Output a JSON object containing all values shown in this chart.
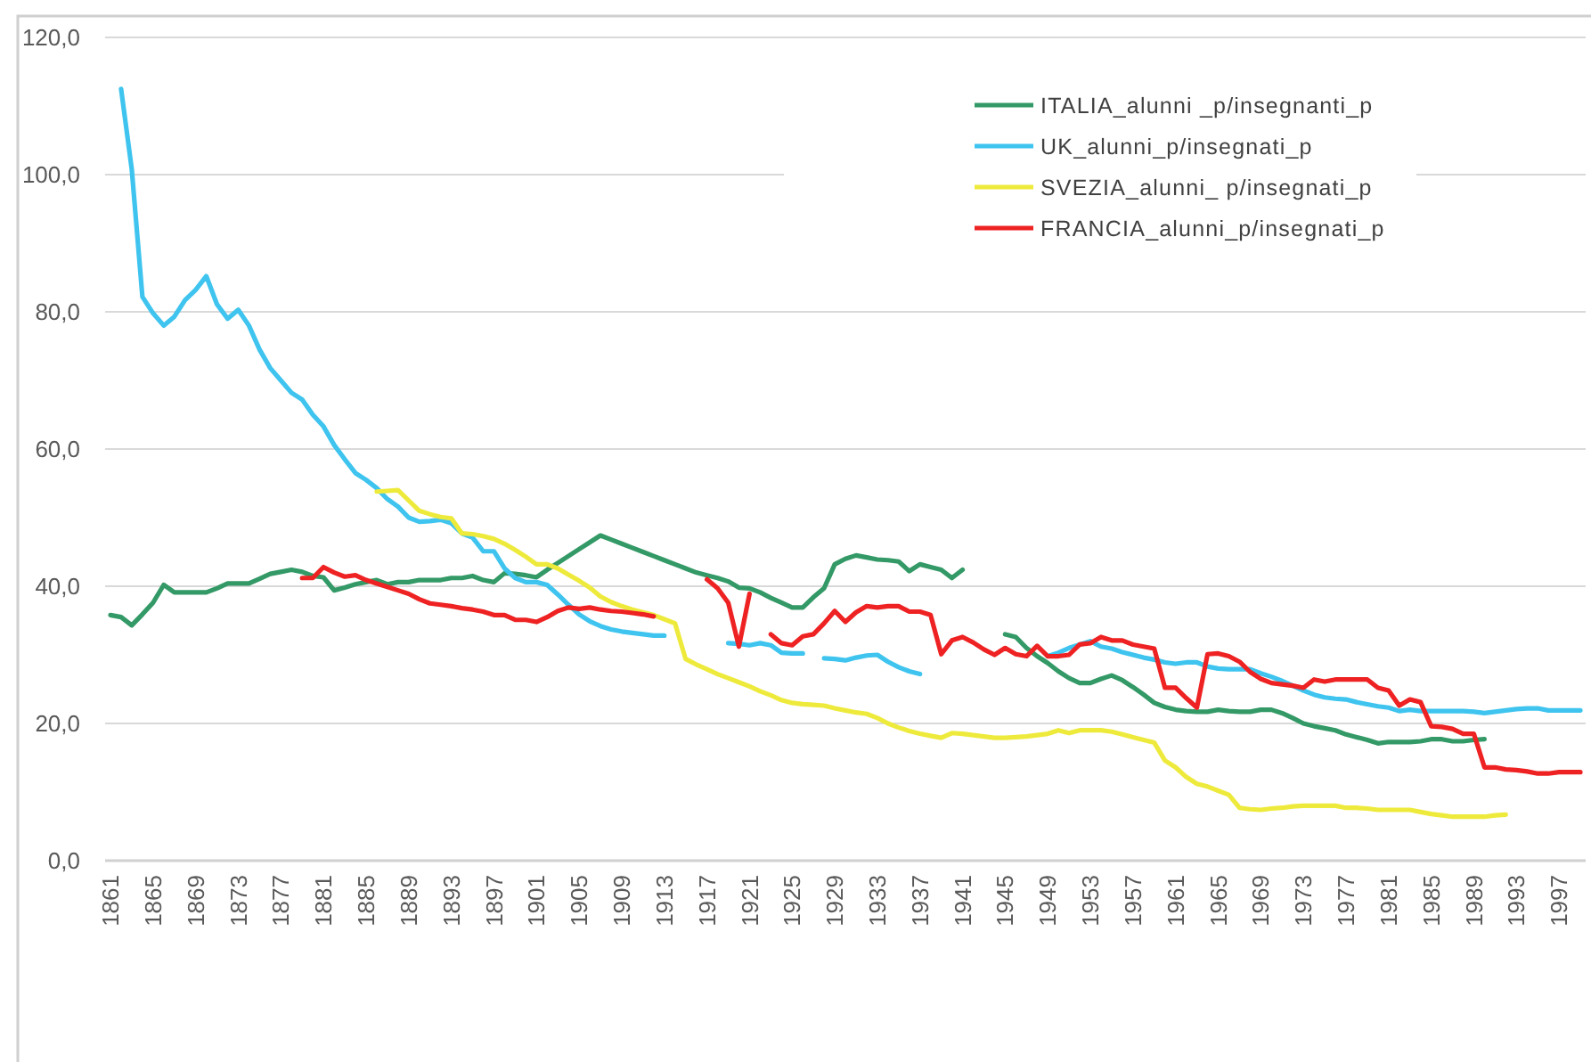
{
  "chart_data": {
    "type": "line",
    "x": [
      1861,
      1862,
      1863,
      1864,
      1865,
      1866,
      1867,
      1868,
      1869,
      1870,
      1871,
      1872,
      1873,
      1874,
      1875,
      1876,
      1877,
      1878,
      1879,
      1880,
      1881,
      1882,
      1883,
      1884,
      1885,
      1886,
      1887,
      1888,
      1889,
      1890,
      1891,
      1892,
      1893,
      1894,
      1895,
      1896,
      1897,
      1898,
      1899,
      1900,
      1901,
      1902,
      1903,
      1904,
      1905,
      1906,
      1907,
      1908,
      1909,
      1910,
      1911,
      1912,
      1913,
      1914,
      1915,
      1916,
      1917,
      1918,
      1919,
      1920,
      1921,
      1922,
      1923,
      1924,
      1925,
      1926,
      1927,
      1928,
      1929,
      1930,
      1931,
      1932,
      1933,
      1934,
      1935,
      1936,
      1937,
      1938,
      1939,
      1940,
      1941,
      1942,
      1943,
      1944,
      1945,
      1946,
      1947,
      1948,
      1949,
      1950,
      1951,
      1952,
      1953,
      1954,
      1955,
      1956,
      1957,
      1958,
      1959,
      1960,
      1961,
      1962,
      1963,
      1964,
      1965,
      1966,
      1967,
      1968,
      1969,
      1970,
      1971,
      1972,
      1973,
      1974,
      1975,
      1976,
      1977,
      1978,
      1979,
      1980,
      1981,
      1982,
      1983,
      1984,
      1985,
      1986,
      1987,
      1988,
      1989,
      1990,
      1991,
      1992,
      1993,
      1994,
      1995,
      1996,
      1997,
      1998,
      1999
    ],
    "series": [
      {
        "name": "ITALIA_alunni _p/insegnanti_p",
        "color": "#339966",
        "values": [
          35.8,
          35.5,
          34.3,
          35.9,
          37.6,
          40.2,
          39.1,
          39.1,
          39.1,
          39.1,
          39.7,
          40.4,
          40.4,
          40.4,
          41.1,
          41.8,
          42.1,
          42.4,
          42.1,
          41.5,
          41.3,
          39.4,
          39.8,
          40.3,
          40.6,
          40.9,
          40.3,
          40.6,
          40.6,
          40.9,
          40.9,
          40.9,
          41.2,
          41.2,
          41.5,
          40.9,
          40.6,
          41.9,
          41.8,
          41.6,
          41.3,
          42.4,
          43.4,
          44.4,
          45.4,
          46.4,
          47.4,
          46.8,
          46.2,
          45.6,
          45.0,
          44.4,
          43.8,
          43.2,
          42.6,
          42.0,
          41.6,
          41.2,
          40.7,
          39.8,
          39.7,
          39.1,
          38.3,
          37.6,
          36.9,
          36.9,
          38.4,
          39.7,
          43.2,
          44.0,
          44.5,
          44.2,
          43.9,
          43.8,
          43.6,
          42.2,
          43.2,
          42.8,
          42.4,
          41.2,
          42.4,
          null,
          null,
          null,
          33.0,
          32.6,
          31.0,
          29.8,
          28.8,
          27.6,
          26.6,
          25.9,
          25.9,
          26.5,
          27.0,
          26.3,
          25.3,
          24.2,
          23.0,
          22.4,
          22.0,
          21.8,
          21.7,
          21.7,
          22.0,
          21.8,
          21.7,
          21.7,
          22.0,
          22.0,
          21.5,
          20.8,
          20.0,
          19.6,
          19.3,
          19.0,
          18.4,
          18.0,
          17.6,
          17.1,
          17.3,
          17.3,
          17.3,
          17.4,
          17.7,
          17.7,
          17.4,
          17.4,
          17.6,
          17.7,
          null,
          null,
          null,
          null,
          null,
          null,
          null,
          null,
          null
        ]
      },
      {
        "name": "UK_alunni_p/insegnati_p",
        "color": "#3ec4ee",
        "values": [
          null,
          112.5,
          100.8,
          82.2,
          79.8,
          78.0,
          79.3,
          81.7,
          83.2,
          85.2,
          81.1,
          79.0,
          80.3,
          78.0,
          74.5,
          71.8,
          70.0,
          68.2,
          67.2,
          65.0,
          63.3,
          60.6,
          58.5,
          56.5,
          55.5,
          54.3,
          52.7,
          51.6,
          50.0,
          49.4,
          49.5,
          49.7,
          49.2,
          47.7,
          47.1,
          45.1,
          45.1,
          42.6,
          41.2,
          40.6,
          40.6,
          40.2,
          38.8,
          37.3,
          35.9,
          34.9,
          34.2,
          33.7,
          33.4,
          33.2,
          33.0,
          32.8,
          32.8,
          null,
          null,
          null,
          null,
          null,
          31.7,
          31.6,
          31.4,
          31.7,
          31.4,
          30.3,
          30.2,
          30.2,
          null,
          29.5,
          29.4,
          29.2,
          29.6,
          29.9,
          30.0,
          29.0,
          28.2,
          27.6,
          27.2,
          null,
          null,
          null,
          null,
          null,
          null,
          null,
          null,
          null,
          null,
          null,
          29.8,
          30.3,
          31.0,
          31.5,
          32.0,
          31.2,
          30.9,
          30.4,
          30.0,
          29.6,
          29.3,
          28.9,
          28.7,
          28.9,
          28.9,
          28.3,
          28.0,
          27.9,
          27.9,
          27.9,
          27.3,
          26.8,
          26.2,
          25.5,
          24.8,
          24.2,
          23.8,
          23.6,
          23.5,
          23.1,
          22.8,
          22.5,
          22.3,
          21.8,
          22.0,
          21.8,
          21.8,
          21.8,
          21.8,
          21.8,
          21.7,
          21.5,
          21.7,
          21.9,
          22.1,
          22.2,
          22.2,
          21.9,
          21.9,
          21.9,
          21.9
        ]
      },
      {
        "name": "SVEZIA_alunni_ p/insegnati_p",
        "color": "#eeea3c",
        "values": [
          null,
          null,
          null,
          null,
          null,
          null,
          null,
          null,
          null,
          null,
          null,
          null,
          null,
          null,
          null,
          null,
          null,
          null,
          null,
          null,
          null,
          null,
          null,
          null,
          null,
          53.8,
          53.9,
          54.0,
          52.5,
          51.0,
          50.5,
          50.1,
          49.9,
          47.7,
          47.6,
          47.3,
          46.9,
          46.2,
          45.3,
          44.3,
          43.2,
          43.2,
          42.6,
          41.7,
          40.8,
          39.8,
          38.5,
          37.7,
          37.1,
          36.6,
          36.2,
          35.8,
          35.2,
          34.6,
          29.4,
          28.6,
          27.9,
          27.2,
          26.6,
          26.0,
          25.4,
          24.7,
          24.1,
          23.4,
          23.0,
          22.8,
          22.7,
          22.6,
          22.2,
          21.9,
          21.6,
          21.4,
          20.8,
          20.0,
          19.4,
          18.9,
          18.5,
          18.2,
          17.9,
          18.6,
          18.5,
          18.3,
          18.1,
          17.9,
          17.9,
          18.0,
          18.1,
          18.3,
          18.5,
          19.0,
          18.6,
          19.0,
          19.0,
          19.0,
          18.8,
          18.4,
          18.0,
          17.6,
          17.2,
          14.6,
          13.6,
          12.2,
          11.2,
          10.8,
          10.2,
          9.6,
          7.7,
          7.5,
          7.4,
          7.6,
          7.7,
          7.9,
          8.0,
          8.0,
          8.0,
          8.0,
          7.7,
          7.7,
          7.6,
          7.4,
          7.4,
          7.4,
          7.4,
          7.1,
          6.8,
          6.6,
          6.4,
          6.4,
          6.4,
          6.4,
          6.6,
          6.7,
          null,
          null,
          null,
          null,
          null,
          null,
          null
        ]
      },
      {
        "name": "FRANCIA_alunni_p/insegnati_p",
        "color": "#ee2222",
        "values": [
          null,
          null,
          null,
          null,
          null,
          null,
          null,
          null,
          null,
          null,
          null,
          null,
          null,
          null,
          null,
          null,
          null,
          null,
          41.2,
          41.2,
          42.8,
          42.0,
          41.4,
          41.6,
          40.9,
          40.4,
          39.9,
          39.4,
          38.9,
          38.1,
          37.5,
          37.3,
          37.1,
          36.8,
          36.6,
          36.3,
          35.8,
          35.8,
          35.1,
          35.1,
          34.8,
          35.5,
          36.4,
          36.9,
          36.7,
          36.9,
          36.6,
          36.4,
          36.3,
          36.1,
          35.9,
          35.6,
          null,
          null,
          null,
          null,
          41.0,
          39.7,
          37.6,
          31.2,
          38.9,
          null,
          33.0,
          31.7,
          31.4,
          32.7,
          33.0,
          34.6,
          36.4,
          34.8,
          36.2,
          37.1,
          36.9,
          37.1,
          37.1,
          36.3,
          36.3,
          35.8,
          30.1,
          32.1,
          32.6,
          31.8,
          30.8,
          30.0,
          31.0,
          30.1,
          29.8,
          31.3,
          29.8,
          29.8,
          30.0,
          31.5,
          31.7,
          32.6,
          32.1,
          32.1,
          31.5,
          31.2,
          30.9,
          25.2,
          25.2,
          23.7,
          22.3,
          30.1,
          30.2,
          29.8,
          29.0,
          27.5,
          26.5,
          25.9,
          25.7,
          25.5,
          25.2,
          26.4,
          26.1,
          26.4,
          26.4,
          26.4,
          26.4,
          25.2,
          24.8,
          22.6,
          23.5,
          23.1,
          19.6,
          19.5,
          19.2,
          18.5,
          18.5,
          13.6,
          13.6,
          13.3,
          13.2,
          13.0,
          12.7,
          12.7,
          12.9,
          12.9,
          12.9
        ]
      }
    ],
    "xlim": [
      1860.5,
      1999.5
    ],
    "xticks": [
      1861,
      1865,
      1869,
      1873,
      1877,
      1881,
      1885,
      1889,
      1893,
      1897,
      1901,
      1905,
      1909,
      1913,
      1917,
      1921,
      1925,
      1929,
      1933,
      1937,
      1941,
      1945,
      1949,
      1953,
      1957,
      1961,
      1965,
      1969,
      1973,
      1977,
      1981,
      1985,
      1989,
      1993,
      1997
    ],
    "ylim": [
      0,
      120
    ],
    "yticks": [
      {
        "value": 0,
        "label": "0,0"
      },
      {
        "value": 20,
        "label": "20,0"
      },
      {
        "value": 40,
        "label": "40,0"
      },
      {
        "value": 60,
        "label": "60,0"
      },
      {
        "value": 80,
        "label": "80,0"
      },
      {
        "value": 100,
        "label": "100,0"
      },
      {
        "value": 120,
        "label": "120,0"
      }
    ],
    "grid": "y",
    "legend": "top right",
    "marker": "none",
    "line_style": "solid"
  }
}
